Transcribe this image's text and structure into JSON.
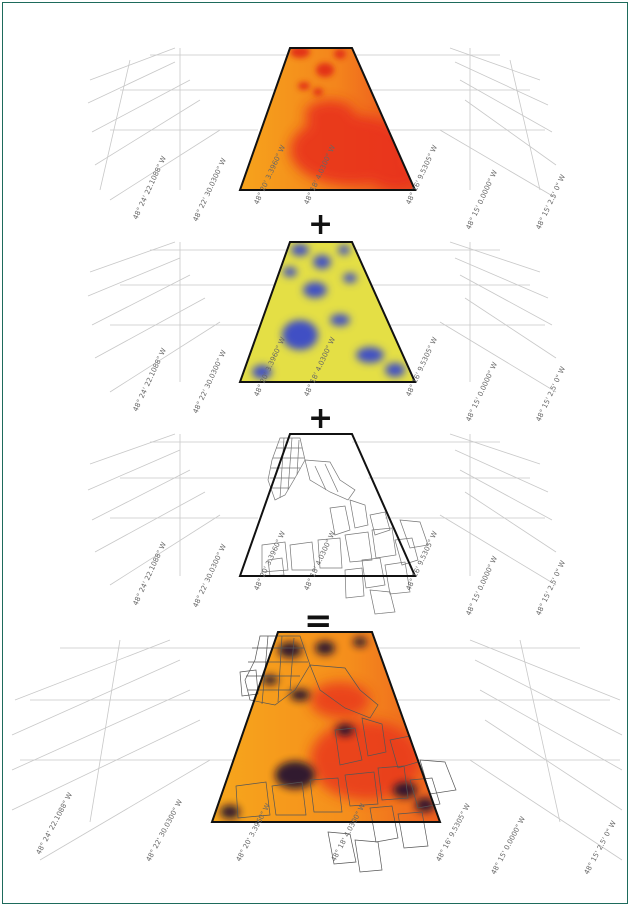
{
  "colors": {
    "border": "#1e6b5c",
    "grid": "#bdbdbd",
    "heat_low": "#f7a11a",
    "heat_high": "#e8321e",
    "yellow": "#e6e142",
    "blue": "#3f4fc4",
    "dark": "#1a1030"
  },
  "operators": {
    "plus1": "+",
    "plus2": "+",
    "equals": "="
  },
  "layers": [
    {
      "name": "heat-layer",
      "axis_labels": [
        "48° 24' 22.1088\" W",
        "48° 22' 30.0300\" W",
        "48° 20' 3.3960\" W",
        "48° 18' 4.0300\" W",
        "48° 16' 9.5305\" W",
        "48° 15' 0.0000\" W",
        "48° 15' 2.5' 0\" W"
      ]
    },
    {
      "name": "yellow-blue-layer",
      "axis_labels": [
        "48° 24' 22.1088\" W",
        "48° 22' 30.0300\" W",
        "48° 20' 3.3960\" W",
        "48° 18' 4.0300\" W",
        "48° 16' 9.5305\" W",
        "48° 15' 0.0000\" W",
        "48° 15' 2.5' 0\" W"
      ]
    },
    {
      "name": "parcel-layer",
      "axis_labels": [
        "48° 24' 22.1088\" W",
        "48° 22' 30.0300\" W",
        "48° 20' 3.3960\" W",
        "48° 18' 4.0300\" W",
        "48° 16' 9.5305\" W",
        "48° 15' 0.0000\" W",
        "48° 15' 2.5' 0\" W"
      ]
    },
    {
      "name": "combined-layer",
      "axis_labels": [
        "48° 24' 22.1088\" W",
        "48° 22' 30.0300\" W",
        "48° 20' 3.3960\" W",
        "48° 18' 4.0300\" W",
        "48° 16' 9.5305\" W",
        "48° 15' 0.0000\" W",
        "48° 15' 2.5' 0\" W"
      ]
    }
  ]
}
